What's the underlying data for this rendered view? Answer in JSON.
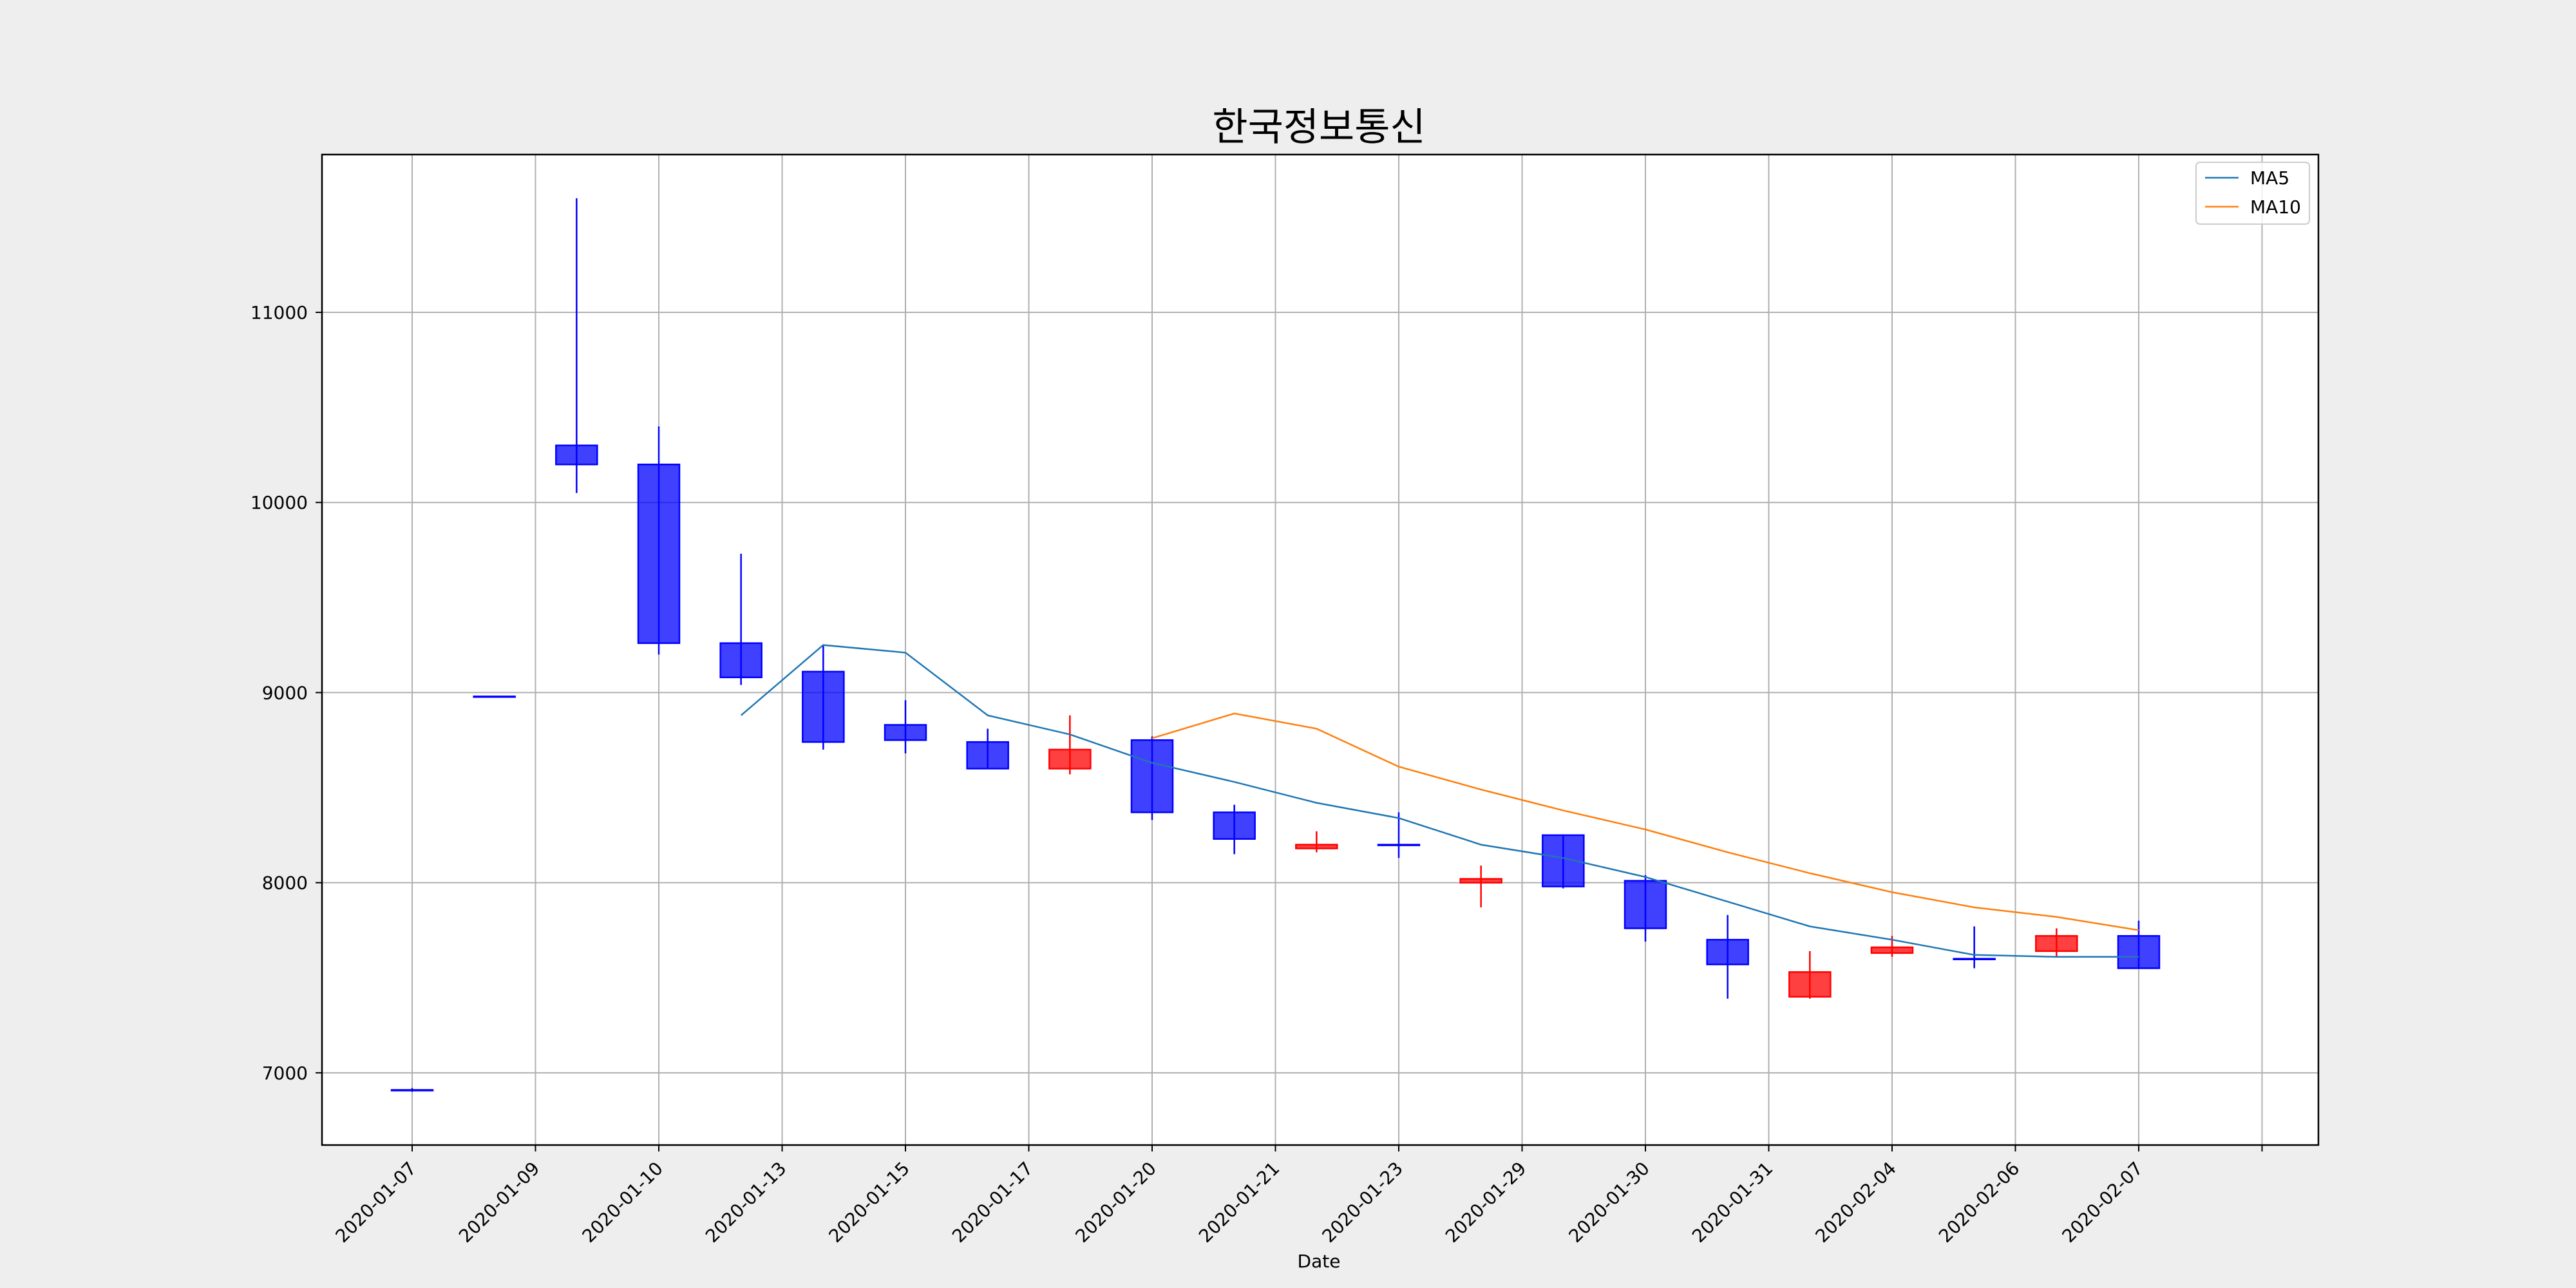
{
  "chart_data": {
    "type": "candlestick",
    "title": "한국정보통신",
    "xlabel": "Date",
    "ylabel": "",
    "ylim": [
      6620,
      11830
    ],
    "yticks": [
      7000,
      8000,
      9000,
      10000,
      11000
    ],
    "xticks": [
      "2020-01-07",
      "2020-01-09",
      "2020-01-10",
      "2020-01-13",
      "2020-01-15",
      "2020-01-17",
      "2020-01-20",
      "2020-01-21",
      "2020-01-23",
      "2020-01-29",
      "2020-01-30",
      "2020-01-31",
      "2020-02-04",
      "2020-02-06",
      "2020-02-07",
      ""
    ],
    "grid": true,
    "legend_position": "top-right",
    "colors": {
      "up": "#ff0000",
      "down": "#0000ff",
      "ma5": "#1f77b4",
      "ma10": "#ff7f0e"
    },
    "candles": [
      {
        "open": 6910,
        "close": 6910,
        "high": 6920,
        "low": 6900
      },
      {
        "open": 8980,
        "close": 8980,
        "high": 8980,
        "low": 8980
      },
      {
        "open": 10300,
        "close": 10200,
        "high": 11600,
        "low": 10050
      },
      {
        "open": 10200,
        "close": 9260,
        "high": 10400,
        "low": 9200
      },
      {
        "open": 9260,
        "close": 9080,
        "high": 9730,
        "low": 9040
      },
      {
        "open": 9110,
        "close": 8740,
        "high": 9250,
        "low": 8700
      },
      {
        "open": 8830,
        "close": 8750,
        "high": 8960,
        "low": 8680
      },
      {
        "open": 8740,
        "close": 8600,
        "high": 8810,
        "low": 8600
      },
      {
        "open": 8600,
        "close": 8700,
        "high": 8880,
        "low": 8570
      },
      {
        "open": 8750,
        "close": 8370,
        "high": 8770,
        "low": 8330
      },
      {
        "open": 8370,
        "close": 8230,
        "high": 8410,
        "low": 8150
      },
      {
        "open": 8180,
        "close": 8200,
        "high": 8270,
        "low": 8160
      },
      {
        "open": 8200,
        "close": 8200,
        "high": 8370,
        "low": 8130
      },
      {
        "open": 8000,
        "close": 8020,
        "high": 8090,
        "low": 7870
      },
      {
        "open": 8250,
        "close": 7980,
        "high": 8250,
        "low": 7970
      },
      {
        "open": 8010,
        "close": 7760,
        "high": 8040,
        "low": 7690
      },
      {
        "open": 7700,
        "close": 7570,
        "high": 7830,
        "low": 7390
      },
      {
        "open": 7400,
        "close": 7530,
        "high": 7640,
        "low": 7390
      },
      {
        "open": 7630,
        "close": 7660,
        "high": 7720,
        "low": 7610
      },
      {
        "open": 7600,
        "close": 7600,
        "high": 7770,
        "low": 7550
      },
      {
        "open": 7640,
        "close": 7720,
        "high": 7760,
        "low": 7610
      },
      {
        "open": 7720,
        "close": 7550,
        "high": 7800,
        "low": 7550
      }
    ],
    "series": [
      {
        "name": "MA5",
        "start_index": 4,
        "values": [
          8880,
          9250,
          9210,
          8880,
          8780,
          8630,
          8530,
          8420,
          8340,
          8200,
          8130,
          8030,
          7900,
          7770,
          7700,
          7620,
          7610,
          7610
        ]
      },
      {
        "name": "MA10",
        "start_index": 9,
        "values": [
          8760,
          8890,
          8810,
          8610,
          8490,
          8380,
          8280,
          8160,
          8050,
          7950,
          7870,
          7820,
          7750
        ]
      }
    ]
  }
}
